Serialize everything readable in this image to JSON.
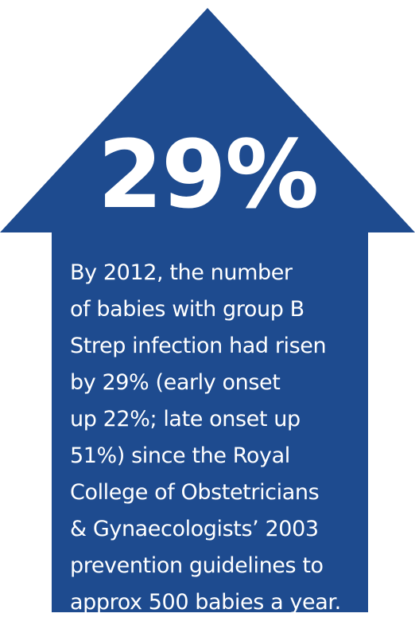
{
  "colors": {
    "arrow_fill": "#1e4b8f",
    "text": "#ffffff",
    "background": "#ffffff"
  },
  "headline": "29%",
  "body_lines": [
    "By 2012, the number",
    "of babies with group B",
    "Strep infection had risen",
    "by 29% (early onset",
    "up 22%; late onset up",
    "51%) since the Royal",
    "College of Obstetricians",
    "& Gynaecologists’ 2003",
    "prevention guidelines to",
    "approx 500 babies a year."
  ]
}
